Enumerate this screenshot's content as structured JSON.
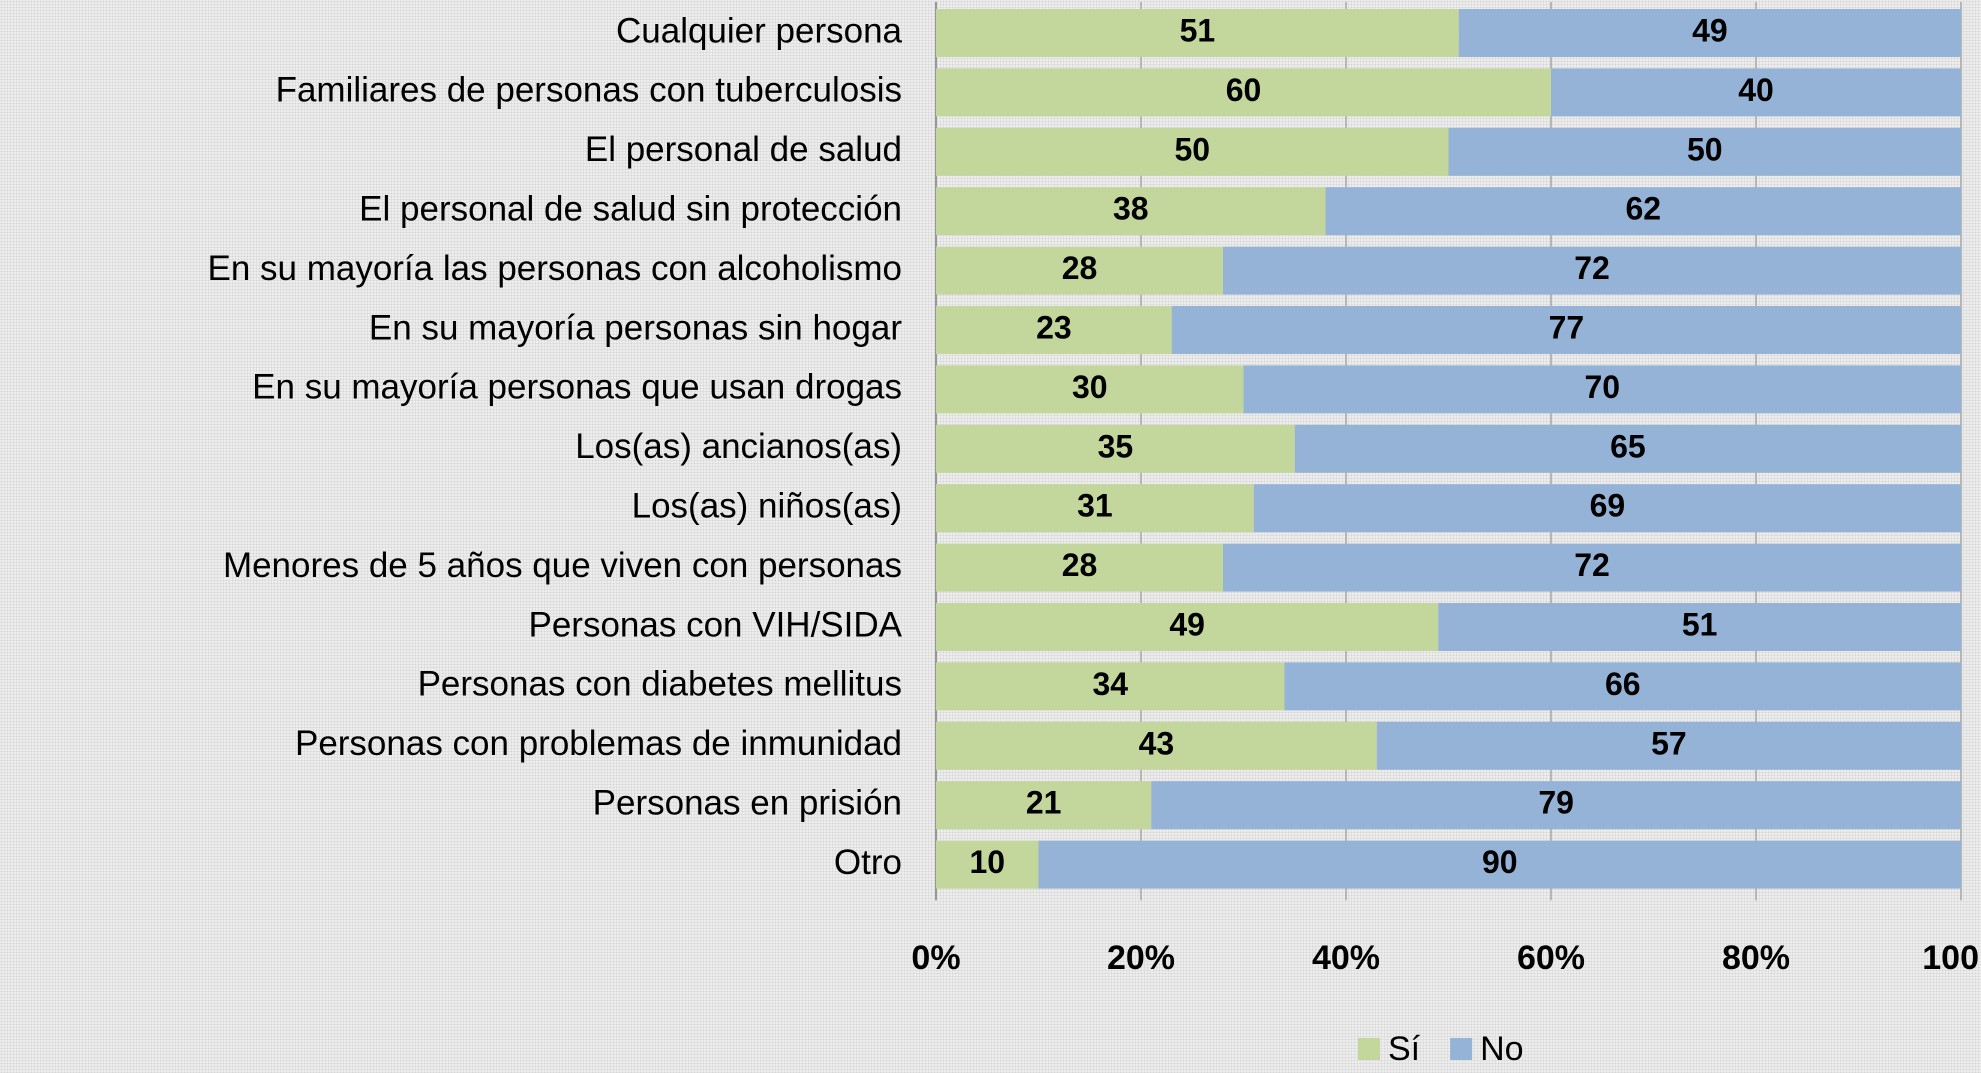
{
  "chart_data": {
    "type": "stacked-bar-horizontal",
    "categories": [
      "Cualquier persona",
      "Familiares de personas con tuberculosis",
      "El personal de salud",
      "El personal de salud sin protección",
      "En su mayoría las personas con alcoholismo",
      "En su mayoría personas sin hogar",
      "En su mayoría personas que usan drogas",
      "Los(as) ancianos(as)",
      "Los(as) niños(as)",
      "Menores de 5 años que viven con personas",
      "Personas con VIH/SIDA",
      "Personas con diabetes mellitus",
      "Personas con problemas de inmunidad",
      "Personas en prisión",
      "Otro"
    ],
    "series": [
      {
        "name": "Sí",
        "color": "#c3d69b",
        "values": [
          51,
          60,
          50,
          38,
          28,
          23,
          30,
          35,
          31,
          28,
          49,
          34,
          43,
          21,
          10
        ]
      },
      {
        "name": "No",
        "color": "#95b3d7",
        "values": [
          49,
          40,
          50,
          62,
          72,
          77,
          70,
          65,
          69,
          72,
          51,
          66,
          57,
          79,
          90
        ]
      }
    ],
    "xlim": [
      0,
      100
    ],
    "xticks": [
      {
        "value": 0,
        "label": "0%"
      },
      {
        "value": 20,
        "label": "20%"
      },
      {
        "value": 40,
        "label": "40%"
      },
      {
        "value": 60,
        "label": "60%"
      },
      {
        "value": 80,
        "label": "80%"
      },
      100
    ],
    "grid": true,
    "legend": "bottom"
  }
}
